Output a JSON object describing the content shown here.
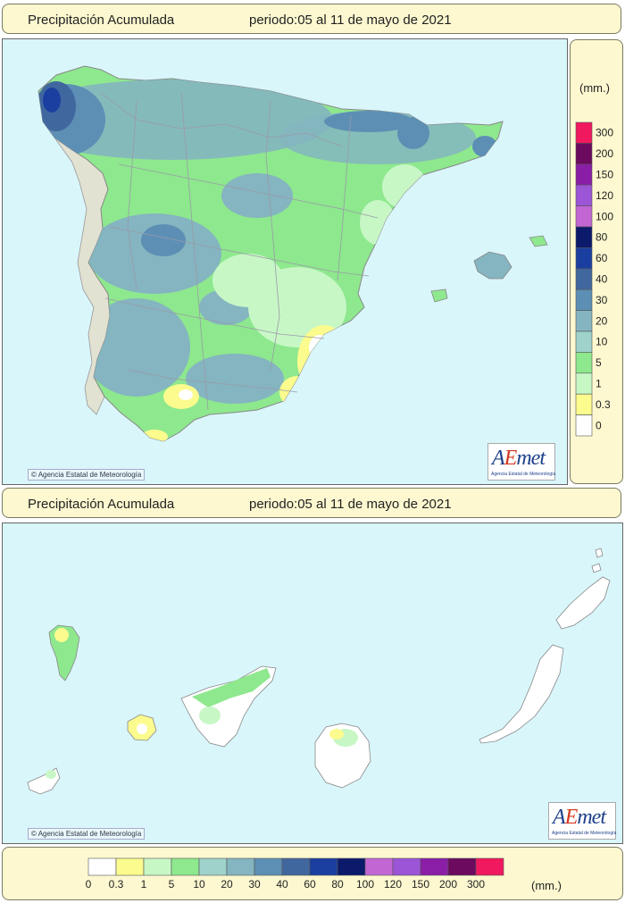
{
  "top_panel": {
    "title": "Precipitación Acumulada",
    "period": "periodo:05 al 11 de mayo de 2021"
  },
  "bottom_panel": {
    "title": "Precipitación Acumulada",
    "period": "periodo:05 al 11 de mayo de 2021"
  },
  "copyright": "Agencia Estatal de Meteorología",
  "logo": {
    "brand_a": "A",
    "brand_e": "E",
    "brand_rest": "met",
    "subtitle": "Agencia Estatal de Meteorología"
  },
  "legend": {
    "unit": "(mm.)",
    "classes": [
      {
        "label": "0",
        "color": "#ffffff"
      },
      {
        "label": "0.3",
        "color": "#fbfb8e"
      },
      {
        "label": "1",
        "color": "#c8f7c6"
      },
      {
        "label": "5",
        "color": "#8ee88e"
      },
      {
        "label": "10",
        "color": "#9ed2cb"
      },
      {
        "label": "20",
        "color": "#84b5c0"
      },
      {
        "label": "30",
        "color": "#5d8fb5"
      },
      {
        "label": "40",
        "color": "#41679f"
      },
      {
        "label": "60",
        "color": "#1a3fa0"
      },
      {
        "label": "80",
        "color": "#0c1a6b"
      },
      {
        "label": "100",
        "color": "#c266d4"
      },
      {
        "label": "120",
        "color": "#9b55d6"
      },
      {
        "label": "150",
        "color": "#8a1ea6"
      },
      {
        "label": "200",
        "color": "#6b0a5e"
      },
      {
        "label": "300",
        "color": "#f0185e"
      }
    ]
  },
  "colors": {
    "sea": "#d9f6fb",
    "panel": "#fdf8d0",
    "border": "#7a7a60",
    "boundary": "#9a9aa8"
  }
}
